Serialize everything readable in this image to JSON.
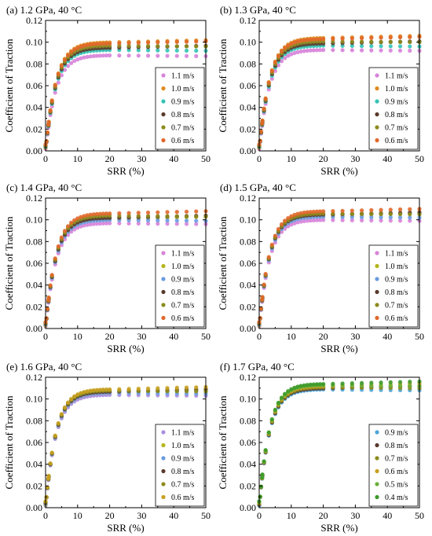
{
  "chart_data": [
    {
      "type": "scatter",
      "title": "(a) 1.2 GPa, 40 °C",
      "xlabel": "SRR (%)",
      "ylabel": "Coefficient of Traction",
      "xlim": [
        0,
        50
      ],
      "ylim": [
        0,
        0.12
      ],
      "xticks": [
        "0",
        "10",
        "20",
        "30",
        "40",
        "50"
      ],
      "yticks": [
        "0.00",
        "0.02",
        "0.04",
        "0.06",
        "0.08",
        "0.10",
        "0.12"
      ],
      "legend_position": "bottom-right",
      "series": [
        {
          "name": "1.1 m/s",
          "color": "#d783d9",
          "plateau": 0.088
        },
        {
          "name": "1.0 m/s",
          "color": "#e08a1e",
          "plateau": 0.1
        },
        {
          "name": "0.9 m/s",
          "color": "#33c3b4",
          "plateau": 0.093
        },
        {
          "name": "0.8 m/s",
          "color": "#5a3b2c",
          "plateau": 0.095
        },
        {
          "name": "0.7 m/s",
          "color": "#8c8c1e",
          "plateau": 0.097
        },
        {
          "name": "0.6 m/s",
          "color": "#e0672a",
          "plateau": 0.099
        }
      ]
    },
    {
      "type": "scatter",
      "title": "(b) 1.3 GPa, 40 °C",
      "xlabel": "SRR (%)",
      "ylabel": "Coefficient of Traction",
      "xlim": [
        0,
        50
      ],
      "ylim": [
        0,
        0.12
      ],
      "xticks": [
        "0",
        "10",
        "20",
        "30",
        "40",
        "50"
      ],
      "yticks": [
        "0.00",
        "0.02",
        "0.04",
        "0.06",
        "0.08",
        "0.10",
        "0.12"
      ],
      "legend_position": "bottom-right",
      "series": [
        {
          "name": "1.1 m/s",
          "color": "#d783d9",
          "plateau": 0.093
        },
        {
          "name": "1.0 m/s",
          "color": "#e08a1e",
          "plateau": 0.104
        },
        {
          "name": "0.9 m/s",
          "color": "#33c3b4",
          "plateau": 0.097
        },
        {
          "name": "0.8 m/s",
          "color": "#5a3b2c",
          "plateau": 0.099
        },
        {
          "name": "0.7 m/s",
          "color": "#8c8c1e",
          "plateau": 0.101
        },
        {
          "name": "0.6 m/s",
          "color": "#e0672a",
          "plateau": 0.103
        }
      ]
    },
    {
      "type": "scatter",
      "title": "(c) 1.4 GPa, 40 °C",
      "xlabel": "SRR (%)",
      "ylabel": "Coefficient of Traction",
      "xlim": [
        0,
        50
      ],
      "ylim": [
        0,
        0.12
      ],
      "xticks": [
        "0",
        "10",
        "20",
        "30",
        "40",
        "50"
      ],
      "yticks": [
        "0.00",
        "0.02",
        "0.04",
        "0.06",
        "0.08",
        "0.10",
        "0.12"
      ],
      "legend_position": "bottom-right",
      "series": [
        {
          "name": "1.1 m/s",
          "color": "#d783d9",
          "plateau": 0.097
        },
        {
          "name": "1.0 m/s",
          "color": "#b5b51e",
          "plateau": 0.101
        },
        {
          "name": "0.9 m/s",
          "color": "#6b9be0",
          "plateau": 0.1
        },
        {
          "name": "0.8 m/s",
          "color": "#5a3b2c",
          "plateau": 0.102
        },
        {
          "name": "0.7 m/s",
          "color": "#8c8c1e",
          "plateau": 0.104
        },
        {
          "name": "0.6 m/s",
          "color": "#e0672a",
          "plateau": 0.106
        }
      ]
    },
    {
      "type": "scatter",
      "title": "(d) 1.5 GPa, 40 °C",
      "xlabel": "SRR (%)",
      "ylabel": "Coefficient of Traction",
      "xlim": [
        0,
        50
      ],
      "ylim": [
        0,
        0.12
      ],
      "xticks": [
        "0",
        "10",
        "20",
        "30",
        "40",
        "50"
      ],
      "yticks": [
        "0.00",
        "0.02",
        "0.04",
        "0.06",
        "0.08",
        "0.10",
        "0.12"
      ],
      "legend_position": "bottom-right",
      "series": [
        {
          "name": "1.1 m/s",
          "color": "#d783d9",
          "plateau": 0.1
        },
        {
          "name": "1.0 m/s",
          "color": "#b5b51e",
          "plateau": 0.104
        },
        {
          "name": "0.9 m/s",
          "color": "#6b9be0",
          "plateau": 0.103
        },
        {
          "name": "0.8 m/s",
          "color": "#5a3b2c",
          "plateau": 0.105
        },
        {
          "name": "0.7 m/s",
          "color": "#8c8c1e",
          "plateau": 0.106
        },
        {
          "name": "0.6 m/s",
          "color": "#e0672a",
          "plateau": 0.108
        }
      ]
    },
    {
      "type": "scatter",
      "title": "(e) 1.6 GPa, 40 °C",
      "xlabel": "SRR (%)",
      "ylabel": "Coefficient of Traction",
      "xlim": [
        0,
        50
      ],
      "ylim": [
        0,
        0.12
      ],
      "xticks": [
        "0",
        "10",
        "20",
        "30",
        "40",
        "50"
      ],
      "yticks": [
        "0.00",
        "0.02",
        "0.04",
        "0.06",
        "0.08",
        "0.10",
        "0.12"
      ],
      "legend_position": "bottom-right",
      "series": [
        {
          "name": "1.1 m/s",
          "color": "#a98de0",
          "plateau": 0.104
        },
        {
          "name": "1.0 m/s",
          "color": "#b5b51e",
          "plateau": 0.106
        },
        {
          "name": "0.9 m/s",
          "color": "#6b9be0",
          "plateau": 0.106
        },
        {
          "name": "0.8 m/s",
          "color": "#5a3b2c",
          "plateau": 0.107
        },
        {
          "name": "0.7 m/s",
          "color": "#8c8c1e",
          "plateau": 0.108
        },
        {
          "name": "0.6 m/s",
          "color": "#c8a020",
          "plateau": 0.109
        }
      ]
    },
    {
      "type": "scatter",
      "title": "(f) 1.7 GPa, 40 °C",
      "xlabel": "SRR (%)",
      "ylabel": "Coefficient of Traction",
      "xlim": [
        0,
        50
      ],
      "ylim": [
        0,
        0.12
      ],
      "xticks": [
        "0",
        "10",
        "20",
        "30",
        "40",
        "50"
      ],
      "yticks": [
        "0.00",
        "0.02",
        "0.04",
        "0.06",
        "0.08",
        "0.10",
        "0.12"
      ],
      "legend_position": "bottom-right",
      "series": [
        {
          "name": "0.9 m/s",
          "color": "#4ea6d9",
          "plateau": 0.109
        },
        {
          "name": "0.8 m/s",
          "color": "#5a3b2c",
          "plateau": 0.11
        },
        {
          "name": "0.7 m/s",
          "color": "#8c8c1e",
          "plateau": 0.111
        },
        {
          "name": "0.6 m/s",
          "color": "#c8a020",
          "plateau": 0.112
        },
        {
          "name": "0.5 m/s",
          "color": "#6bb03a",
          "plateau": 0.113
        },
        {
          "name": "0.4 m/s",
          "color": "#3c9a2a",
          "plateau": 0.114
        }
      ]
    }
  ]
}
